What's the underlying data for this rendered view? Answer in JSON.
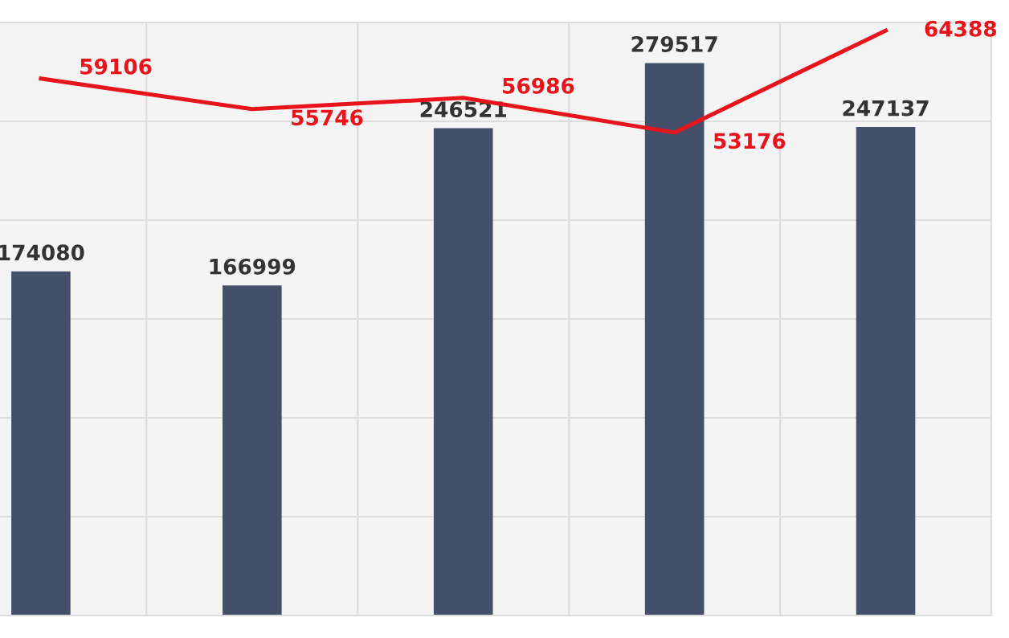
{
  "chart_data": [
    {
      "type": "bar",
      "categories": [
        null,
        null,
        null,
        null,
        null
      ],
      "color": "#44506a",
      "values": [
        174080,
        166999,
        246521,
        279517,
        247137
      ],
      "ylim": [
        0,
        300000
      ],
      "yticks": [
        {
          "value": 0,
          "label": null
        },
        {
          "value": 50000,
          "label": null
        },
        {
          "value": 100000,
          "label": null
        },
        {
          "value": 150000,
          "label": null
        },
        {
          "value": 200000,
          "label": null
        },
        {
          "value": 250000,
          "label": null
        },
        {
          "value": 300000,
          "label": null
        }
      ],
      "data_labels": true,
      "grid": true
    },
    {
      "type": "line",
      "categories": [
        null,
        null,
        null,
        null,
        null
      ],
      "color": "#e8141c",
      "values": [
        59106,
        55746,
        56986,
        53176,
        64388
      ],
      "data_labels": true,
      "line_style": "solid"
    }
  ]
}
